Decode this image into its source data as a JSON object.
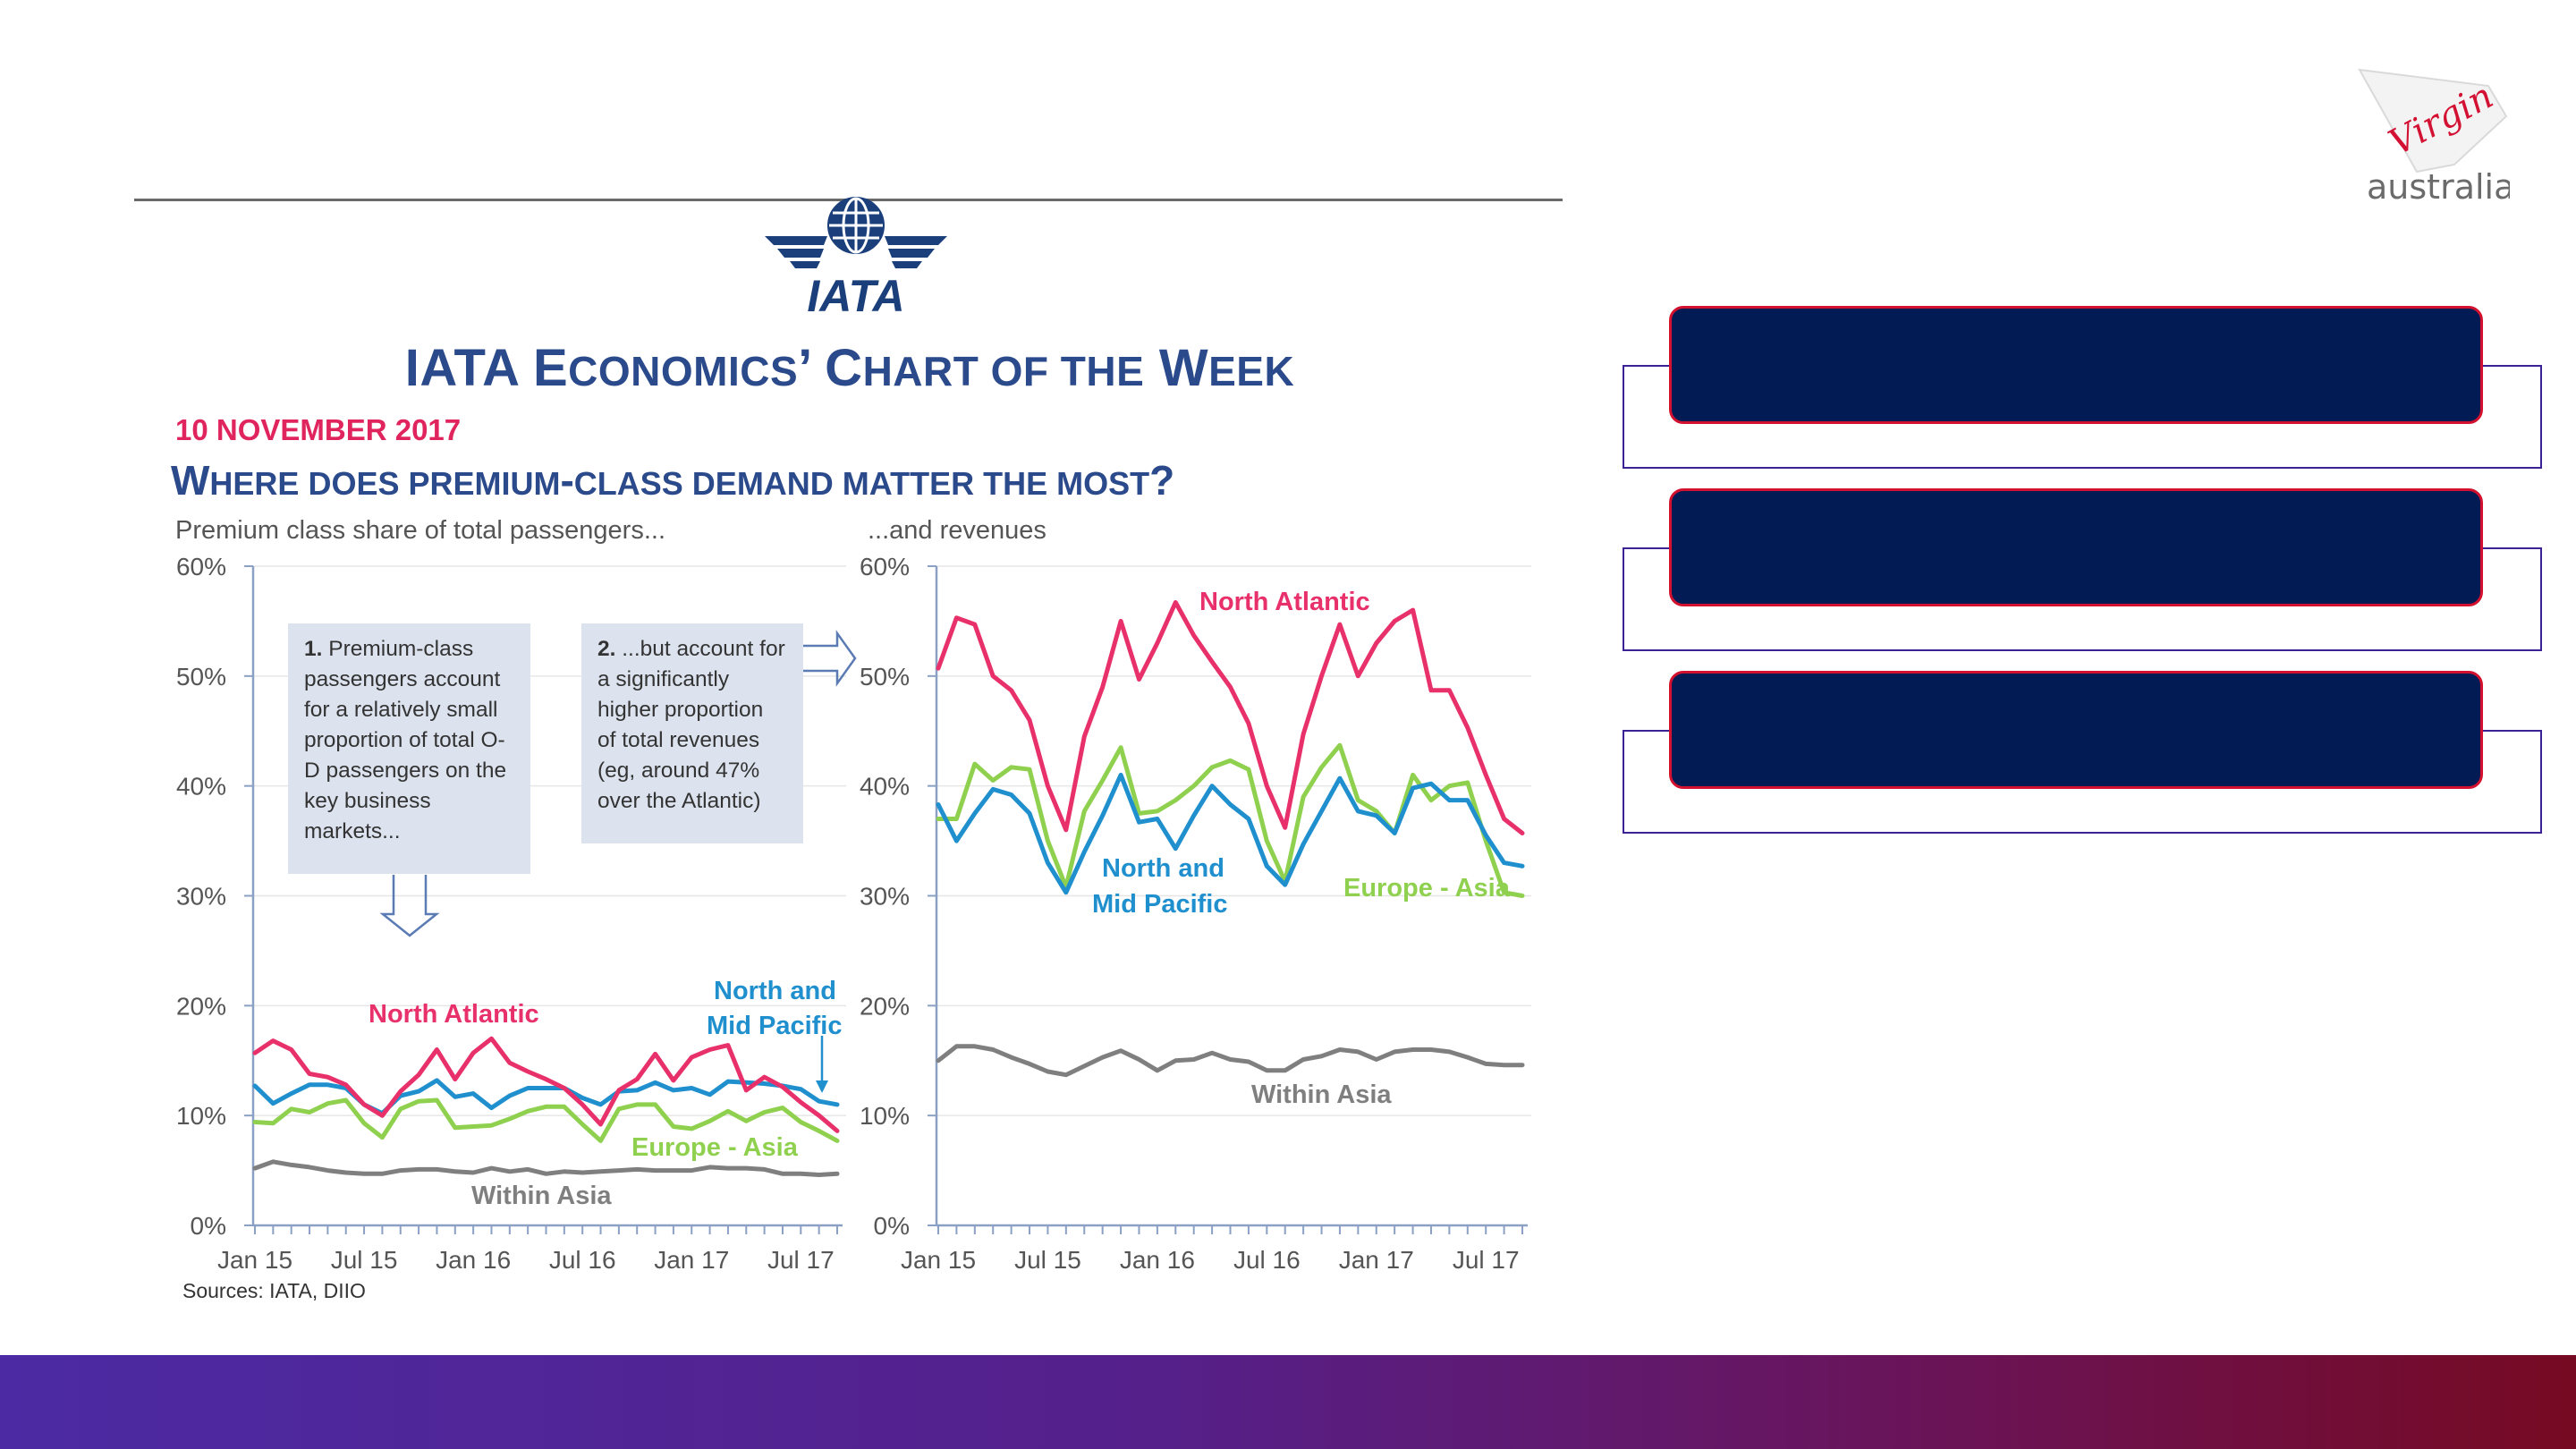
{
  "slide": {
    "brand_logo_text": "Virgin",
    "brand_logo_subtext": "australia",
    "iata_logo_text": "IATA",
    "title_parts": [
      {
        "big": "IATA E",
        "small": "CONOMICS"
      },
      {
        "big": "’ C",
        "small": "HART OF THE"
      },
      {
        "big": " W",
        "small": "EEK"
      }
    ],
    "date": "10 NOVEMBER 2017",
    "question_parts": [
      {
        "big": "W",
        "small": "HERE DOES PREMIUM"
      },
      {
        "big": "-",
        "small": "CLASS DEMAND MATTER THE MOST"
      },
      {
        "big": "?",
        "small": ""
      }
    ],
    "sources": "Sources: IATA, DIIO",
    "colors": {
      "north_atlantic": "#e8306b",
      "north_mid_pacific": "#1f8fce",
      "europe_asia": "#8fd14f",
      "within_asia": "#7f7f7f",
      "title_blue": "#2b4a8b",
      "panel_fill": "#031b55",
      "panel_border": "#d3112e"
    }
  },
  "notes": {
    "note1_num": "1.",
    "note1_text": "Premium-class passengers account for a relatively small proportion of total O-D passengers on the key business markets...",
    "note2_num": "2.",
    "note2_text": "...but account for a significantly higher proportion of total revenues (eg, around 47% over the Atlantic)"
  },
  "chart_data": [
    {
      "type": "line",
      "subtitle": "Premium class share of total passengers...",
      "x_tick_labels": [
        "Jan 15",
        "Jul 15",
        "Jan 16",
        "Jul 16",
        "Jan 17",
        "Jul 17"
      ],
      "x": [
        "Jan 15",
        "Feb 15",
        "Mar 15",
        "Apr 15",
        "May 15",
        "Jun 15",
        "Jul 15",
        "Aug 15",
        "Sep 15",
        "Oct 15",
        "Nov 15",
        "Dec 15",
        "Jan 16",
        "Feb 16",
        "Mar 16",
        "Apr 16",
        "May 16",
        "Jun 16",
        "Jul 16",
        "Aug 16",
        "Sep 16",
        "Oct 16",
        "Nov 16",
        "Dec 16",
        "Jan 17",
        "Feb 17",
        "Mar 17",
        "Apr 17",
        "May 17",
        "Jun 17",
        "Jul 17",
        "Aug 17",
        "Sep 17"
      ],
      "ylim": [
        0,
        60
      ],
      "y_tick_labels": [
        "0%",
        "10%",
        "20%",
        "30%",
        "40%",
        "50%",
        "60%"
      ],
      "series": [
        {
          "name": "North Atlantic",
          "color_key": "north_atlantic",
          "values": [
            15.7,
            16.8,
            16.0,
            13.8,
            13.5,
            12.8,
            11.0,
            10.0,
            12.2,
            13.7,
            16.0,
            13.3,
            15.7,
            17.0,
            14.8,
            14.0,
            13.3,
            12.5,
            11.0,
            9.2,
            12.3,
            13.3,
            15.6,
            13.2,
            15.3,
            16.0,
            16.4,
            12.3,
            13.5,
            12.6,
            11.2,
            10.0,
            8.6
          ]
        },
        {
          "name": "North and Mid Pacific",
          "color_key": "north_mid_pacific",
          "values": [
            12.7,
            11.1,
            12.0,
            12.8,
            12.8,
            12.5,
            11.0,
            10.2,
            11.8,
            12.2,
            13.2,
            11.7,
            12.0,
            10.7,
            11.8,
            12.5,
            12.5,
            12.5,
            11.6,
            11.0,
            12.2,
            12.3,
            13.0,
            12.3,
            12.5,
            11.9,
            13.1,
            13.0,
            12.9,
            12.7,
            12.4,
            11.3,
            11.0
          ]
        },
        {
          "name": "Europe - Asia",
          "color_key": "europe_asia",
          "values": [
            9.4,
            9.3,
            10.6,
            10.3,
            11.1,
            11.4,
            9.3,
            8.0,
            10.6,
            11.3,
            11.4,
            8.9,
            9.0,
            9.1,
            9.7,
            10.4,
            10.8,
            10.8,
            9.2,
            7.7,
            10.6,
            11.0,
            11.0,
            9.0,
            8.8,
            9.5,
            10.4,
            9.5,
            10.3,
            10.7,
            9.4,
            8.6,
            7.7
          ]
        },
        {
          "name": "Within Asia",
          "color_key": "within_asia",
          "values": [
            5.2,
            5.8,
            5.5,
            5.3,
            5.0,
            4.8,
            4.7,
            4.7,
            5.0,
            5.1,
            5.1,
            4.9,
            4.8,
            5.2,
            4.9,
            5.1,
            4.7,
            4.9,
            4.8,
            4.9,
            5.0,
            5.1,
            5.0,
            5.0,
            5.0,
            5.3,
            5.2,
            5.2,
            5.1,
            4.7,
            4.7,
            4.6,
            4.7
          ]
        }
      ],
      "annotations": {
        "north_atlantic": "North Atlantic",
        "north_mid_pacific_1": "North and",
        "north_mid_pacific_2": "Mid Pacific",
        "europe_asia": "Europe - Asia",
        "within_asia": "Within Asia"
      }
    },
    {
      "type": "line",
      "subtitle": "...and revenues",
      "x_tick_labels": [
        "Jan 15",
        "Jul 15",
        "Jan 16",
        "Jul 16",
        "Jan 17",
        "Jul 17"
      ],
      "x": [
        "Jan 15",
        "Feb 15",
        "Mar 15",
        "Apr 15",
        "May 15",
        "Jun 15",
        "Jul 15",
        "Aug 15",
        "Sep 15",
        "Oct 15",
        "Nov 15",
        "Dec 15",
        "Jan 16",
        "Feb 16",
        "Mar 16",
        "Apr 16",
        "May 16",
        "Jun 16",
        "Jul 16",
        "Aug 16",
        "Sep 16",
        "Oct 16",
        "Nov 16",
        "Dec 16",
        "Jan 17",
        "Feb 17",
        "Mar 17",
        "Apr 17",
        "May 17",
        "Jun 17",
        "Jul 17",
        "Aug 17",
        "Sep 17"
      ],
      "ylim": [
        0,
        60
      ],
      "y_tick_labels": [
        "0%",
        "10%",
        "20%",
        "30%",
        "40%",
        "50%",
        "60%"
      ],
      "series": [
        {
          "name": "North Atlantic",
          "color_key": "north_atlantic",
          "values": [
            50.7,
            55.3,
            54.7,
            50.0,
            48.7,
            46.0,
            40.0,
            36.0,
            44.5,
            49.0,
            55.0,
            49.7,
            53.0,
            56.7,
            53.7,
            51.3,
            49.0,
            45.7,
            40.0,
            36.2,
            44.7,
            50.0,
            54.7,
            50.0,
            53.0,
            55.0,
            56.0,
            48.7,
            48.7,
            45.3,
            41.0,
            37.0,
            35.7
          ]
        },
        {
          "name": "North and Mid Pacific",
          "color_key": "north_mid_pacific",
          "values": [
            38.3,
            35.0,
            37.5,
            39.7,
            39.2,
            37.5,
            33.0,
            30.3,
            34.0,
            37.3,
            41.0,
            36.7,
            37.0,
            34.3,
            37.3,
            40.0,
            38.3,
            37.0,
            32.7,
            31.0,
            34.7,
            37.7,
            40.7,
            37.7,
            37.3,
            35.7,
            39.8,
            40.2,
            38.7,
            38.7,
            35.5,
            33.0,
            32.7
          ]
        },
        {
          "name": "Europe - Asia",
          "color_key": "europe_asia",
          "values": [
            37.0,
            37.0,
            42.0,
            40.5,
            41.7,
            41.5,
            35.0,
            30.8,
            37.7,
            40.5,
            43.5,
            37.5,
            37.7,
            38.7,
            40.0,
            41.7,
            42.3,
            41.5,
            35.0,
            31.3,
            39.0,
            41.7,
            43.7,
            38.7,
            37.7,
            35.7,
            41.0,
            38.7,
            40.0,
            40.3,
            35.0,
            30.3,
            30.0
          ]
        },
        {
          "name": "Within Asia",
          "color_key": "within_asia",
          "values": [
            15.0,
            16.3,
            16.3,
            16.0,
            15.3,
            14.7,
            14.0,
            13.7,
            14.5,
            15.3,
            15.9,
            15.1,
            14.1,
            15.0,
            15.1,
            15.7,
            15.1,
            14.9,
            14.1,
            14.1,
            15.1,
            15.4,
            16.0,
            15.8,
            15.1,
            15.8,
            16.0,
            16.0,
            15.8,
            15.3,
            14.7,
            14.6,
            14.6
          ]
        }
      ],
      "annotations": {
        "north_atlantic": "North Atlantic",
        "north_mid_pacific_1": "North and",
        "north_mid_pacific_2": "Mid Pacific",
        "europe_asia": "Europe - Asia",
        "within_asia": "Within Asia"
      }
    }
  ]
}
